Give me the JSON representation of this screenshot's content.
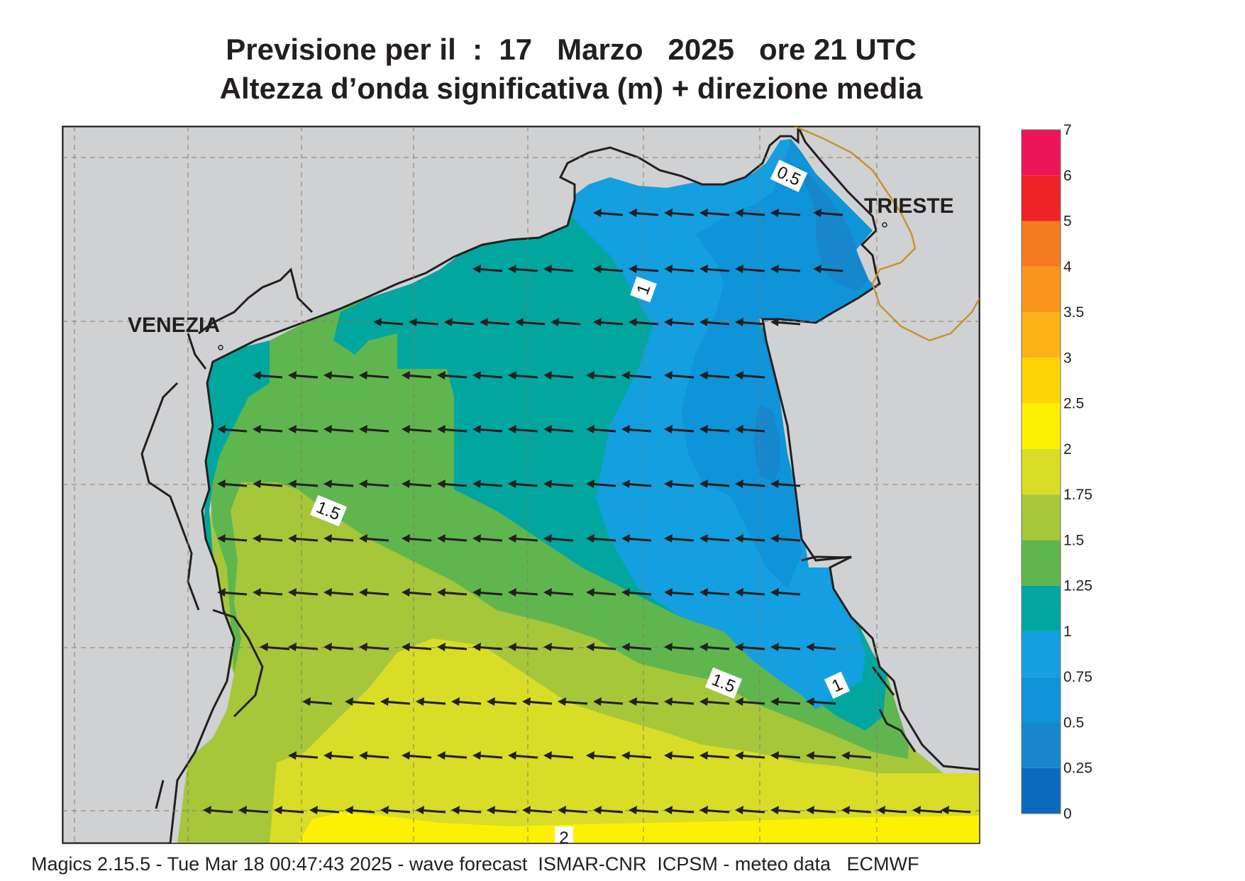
{
  "title": {
    "line1": "Previsione per il  :  17   Marzo   2025   ore 21 UTC",
    "line2": "Altezza d’onda significativa (m) + direzione media"
  },
  "map": {
    "cities": [
      {
        "name": "VENEZIA"
      },
      {
        "name": "TRIESTE"
      }
    ],
    "contour_labels": [
      "0.5",
      "1",
      "1.5",
      "1.5",
      "1",
      "2"
    ],
    "wave_direction": "W",
    "colors": {
      "land": "#d0d1d3",
      "coast": "#231f20",
      "border": "#c8922f",
      "arrow": "#231f20"
    }
  },
  "colorbar": {
    "unit": "m",
    "ticks": [
      "0",
      "0.25",
      "0.5",
      "0.75",
      "1",
      "1.25",
      "1.5",
      "1.75",
      "2",
      "2.5",
      "3",
      "3.5",
      "4",
      "5",
      "6",
      "7"
    ],
    "colors": [
      "#0a6bbd",
      "#1787cc",
      "#0f93d9",
      "#149fe0",
      "#01a79e",
      "#5fb64e",
      "#a6c73a",
      "#d9dd27",
      "#fdf103",
      "#fed504",
      "#fbb318",
      "#f8961d",
      "#f47b20",
      "#ed2326",
      "#ed1559"
    ]
  },
  "footer": "Magics 2.15.5 - Tue Mar 18 00:47:43 2025 - wave forecast  ISMAR-CNR  ICPSM - meteo data   ECMWF"
}
